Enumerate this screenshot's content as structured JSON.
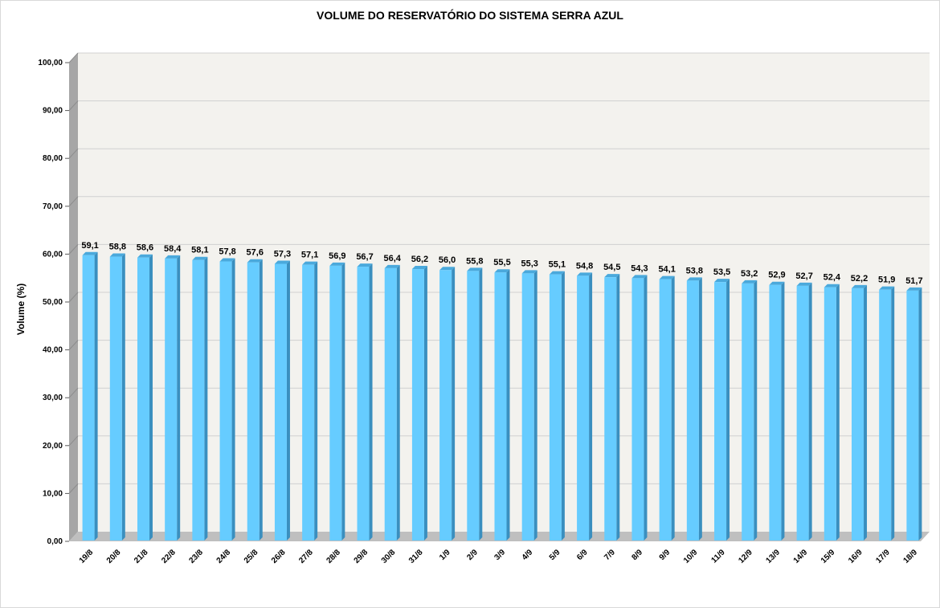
{
  "chart_data": {
    "type": "bar",
    "title": "VOLUME DO RESERVATÓRIO DO SISTEMA SERRA AZUL",
    "ylabel": "Volume (%)",
    "xlabel": "",
    "ylim": [
      0,
      100
    ],
    "y_ticks": [
      "0,00",
      "10,00",
      "20,00",
      "30,00",
      "40,00",
      "50,00",
      "60,00",
      "70,00",
      "80,00",
      "90,00",
      "100,00"
    ],
    "grid": true,
    "legend": "none",
    "categories": [
      "19/8",
      "20/8",
      "21/8",
      "22/8",
      "23/8",
      "24/8",
      "25/8",
      "26/8",
      "27/8",
      "28/8",
      "29/8",
      "30/8",
      "31/8",
      "1/9",
      "2/9",
      "3/9",
      "4/9",
      "5/9",
      "6/9",
      "7/9",
      "8/9",
      "9/9",
      "10/9",
      "11/9",
      "12/9",
      "13/9",
      "14/9",
      "15/9",
      "16/9",
      "17/9",
      "18/9"
    ],
    "values": [
      59.1,
      58.8,
      58.6,
      58.4,
      58.1,
      57.8,
      57.6,
      57.3,
      57.1,
      56.9,
      56.7,
      56.4,
      56.2,
      56.0,
      55.8,
      55.5,
      55.3,
      55.1,
      54.8,
      54.5,
      54.3,
      54.1,
      53.8,
      53.5,
      53.2,
      52.9,
      52.7,
      52.4,
      52.2,
      51.9,
      51.7
    ],
    "data_labels": [
      "59,1",
      "58,8",
      "58,6",
      "58,4",
      "58,1",
      "57,8",
      "57,6",
      "57,3",
      "57,1",
      "56,9",
      "56,7",
      "56,4",
      "56,2",
      "56,0",
      "55,8",
      "55,5",
      "55,3",
      "55,1",
      "54,8",
      "54,5",
      "54,3",
      "54,1",
      "53,8",
      "53,5",
      "53,2",
      "52,9",
      "52,7",
      "52,4",
      "52,2",
      "51,9",
      "51,7"
    ],
    "colors": {
      "bar_front": "#66ccff",
      "bar_side": "#3a8fbf",
      "bar_top": "#4aa9dc",
      "plot_bg": "#f3f2ee",
      "side_wall": "#a6a6a6",
      "floor": "#bfbfbf",
      "grid": "#d0d0d0"
    }
  }
}
